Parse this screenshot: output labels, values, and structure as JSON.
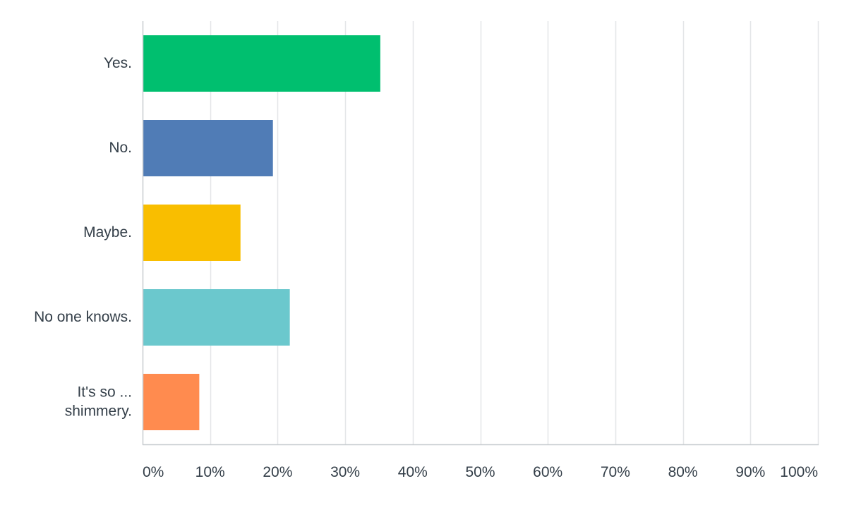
{
  "chart_data": {
    "type": "bar",
    "orientation": "horizontal",
    "categories": [
      [
        "Yes."
      ],
      [
        "No."
      ],
      [
        "Maybe."
      ],
      [
        "No one knows."
      ],
      [
        "It's so ...",
        "shimmery."
      ]
    ],
    "values": [
      35.2,
      19.3,
      14.5,
      21.8,
      8.4
    ],
    "colors": [
      "#00bf6f",
      "#507cb6",
      "#f9be00",
      "#6bc8cd",
      "#ff8b4f"
    ],
    "xlim": [
      0,
      100
    ],
    "ticks": [
      0,
      10,
      20,
      30,
      40,
      50,
      60,
      70,
      80,
      90,
      100
    ],
    "tick_labels": [
      "0%",
      "10%",
      "20%",
      "30%",
      "40%",
      "50%",
      "60%",
      "70%",
      "80%",
      "90%",
      "100%"
    ],
    "grid": true,
    "title": "",
    "xlabel": "",
    "ylabel": ""
  }
}
